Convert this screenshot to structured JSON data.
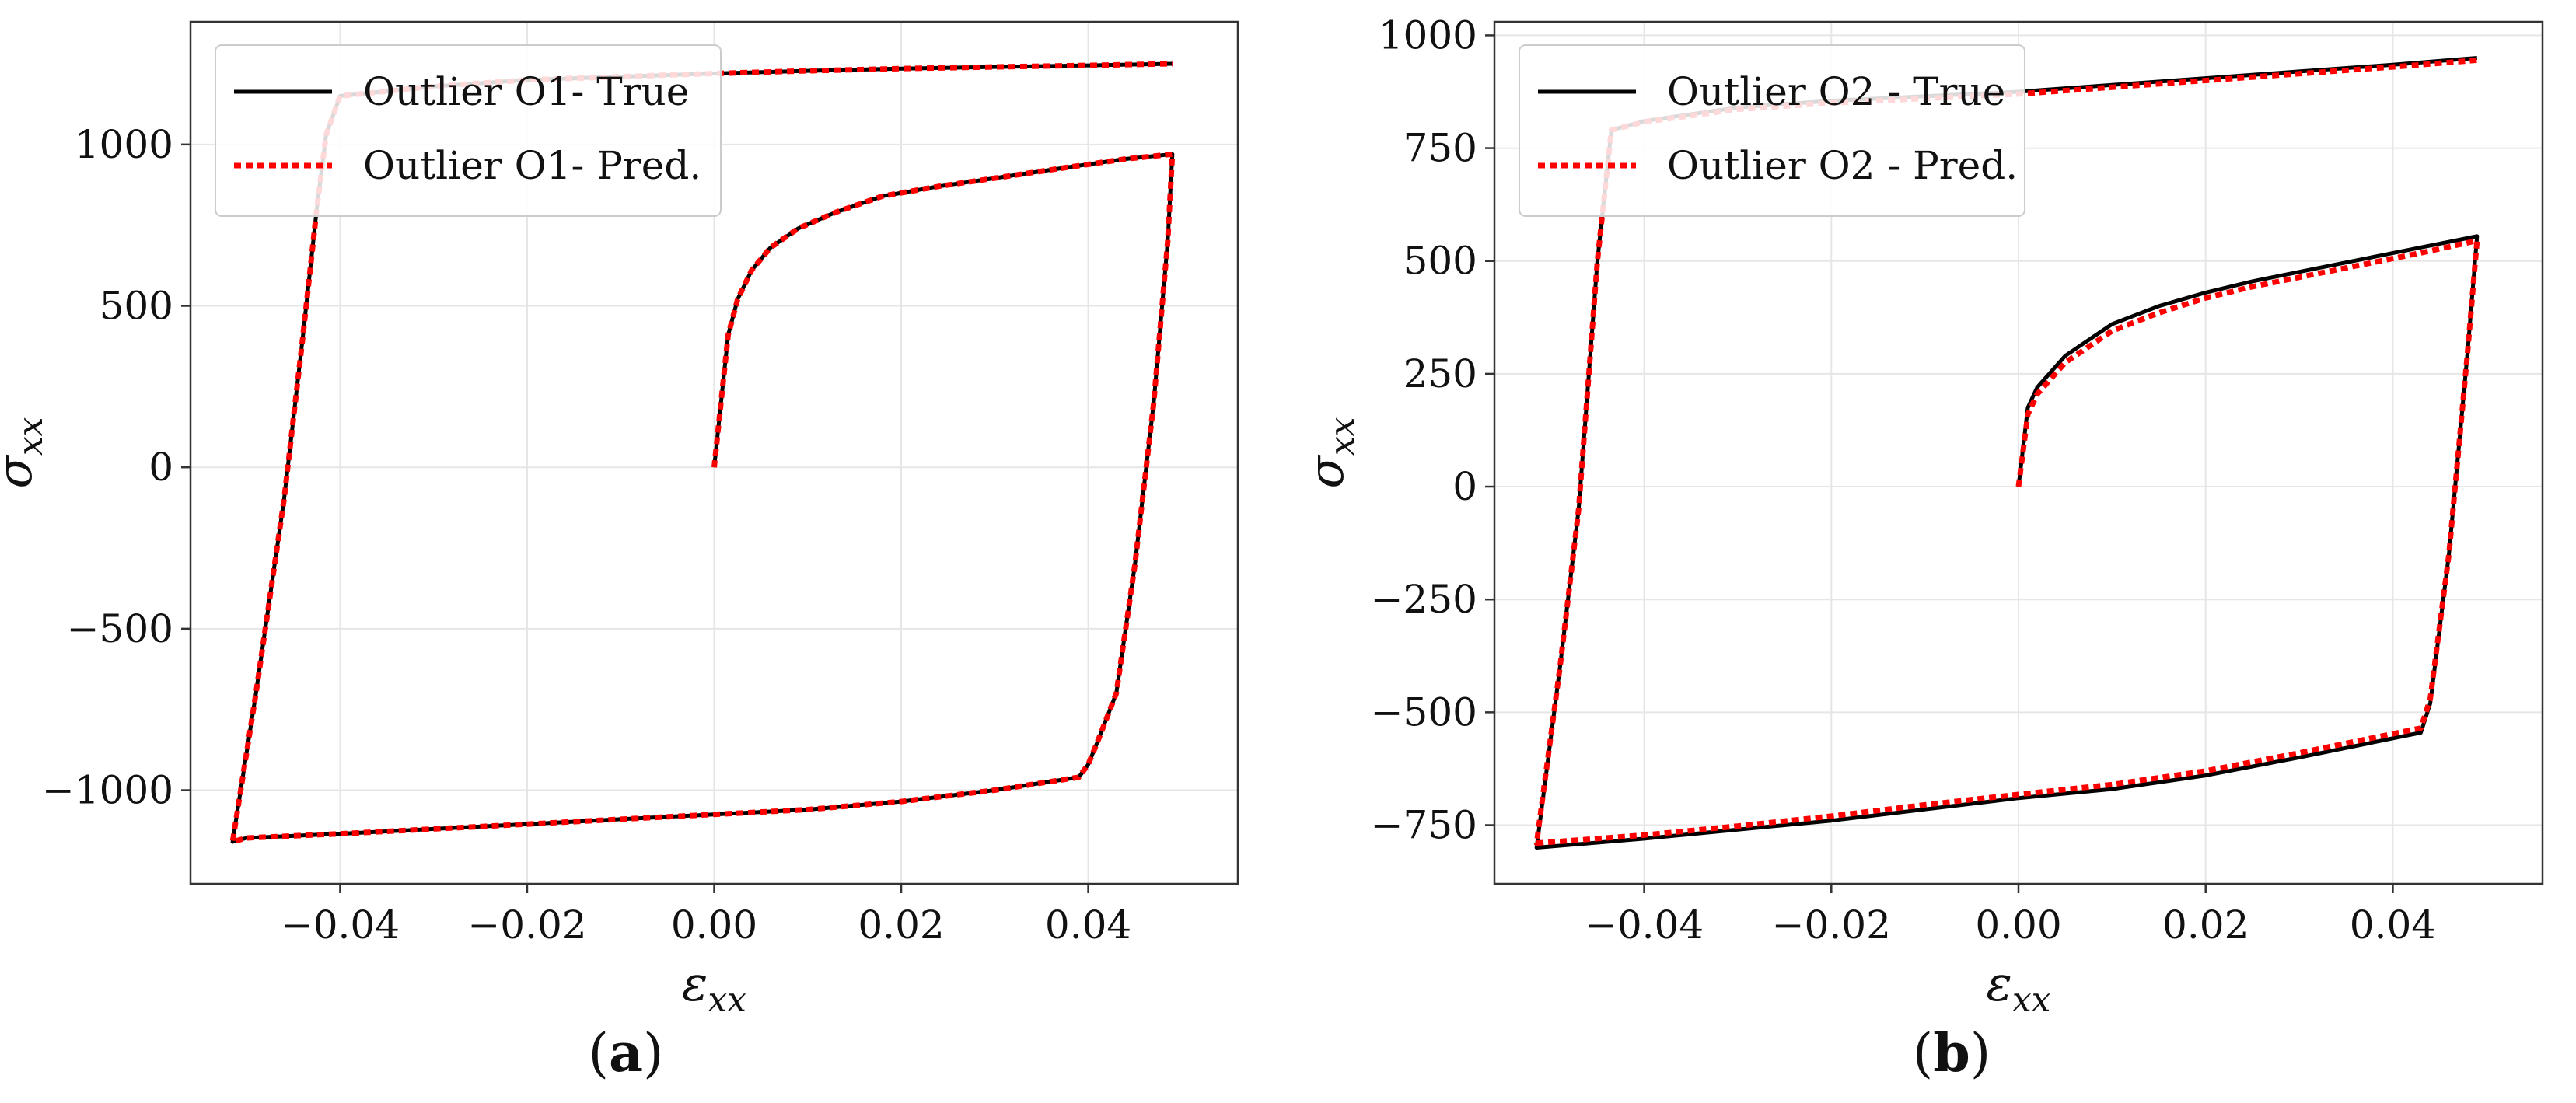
{
  "chart_data": [
    {
      "type": "line",
      "panel_label": "a",
      "xlabel": "ε",
      "xlabel_sub": "xx",
      "ylabel": "σ",
      "ylabel_sub": "xx",
      "xlim": [
        -0.056,
        0.056
      ],
      "ylim": [
        -1290,
        1380
      ],
      "xticks": [
        -0.04,
        -0.02,
        0.0,
        0.02,
        0.04
      ],
      "xtick_labels": [
        "−0.04",
        "−0.02",
        "0.00",
        "0.02",
        "0.04"
      ],
      "yticks": [
        -1000,
        -500,
        0,
        500,
        1000
      ],
      "ytick_labels": [
        "−1000",
        "−500",
        "0",
        "500",
        "1000"
      ],
      "grid": true,
      "legend_position": "upper-left",
      "series": [
        {
          "name": "Outlier O1- True",
          "color": "#000000",
          "style": "solid",
          "x": [
            0.0,
            0.0008,
            0.0015,
            0.0025,
            0.004,
            0.006,
            0.009,
            0.013,
            0.018,
            0.024,
            0.031,
            0.038,
            0.044,
            0.049,
            0.0485,
            0.047,
            0.045,
            0.043,
            0.041,
            0.04,
            0.039,
            0.03,
            0.02,
            0.01,
            0.0,
            -0.01,
            -0.02,
            -0.03,
            -0.04,
            -0.05,
            -0.0515,
            -0.049,
            -0.046,
            -0.044,
            -0.0425,
            -0.0415,
            -0.04,
            -0.03,
            -0.02,
            -0.01,
            0.0,
            0.01,
            0.02,
            0.03,
            0.04,
            0.049
          ],
          "y": [
            0,
            220,
            410,
            520,
            610,
            680,
            740,
            790,
            840,
            870,
            900,
            930,
            955,
            970,
            700,
            200,
            -300,
            -700,
            -850,
            -920,
            -960,
            -1000,
            -1035,
            -1060,
            -1075,
            -1090,
            -1105,
            -1120,
            -1135,
            -1148,
            -1160,
            -700,
            -100,
            400,
            800,
            1030,
            1150,
            1180,
            1200,
            1210,
            1220,
            1228,
            1235,
            1240,
            1245,
            1250
          ]
        },
        {
          "name": "Outlier O1- Pred.",
          "color": "#ff0000",
          "style": "dotted",
          "x": [
            0.0,
            0.0008,
            0.0015,
            0.0025,
            0.004,
            0.006,
            0.009,
            0.013,
            0.018,
            0.024,
            0.031,
            0.038,
            0.044,
            0.049,
            0.0485,
            0.047,
            0.045,
            0.043,
            0.041,
            0.04,
            0.039,
            0.03,
            0.02,
            0.01,
            0.0,
            -0.01,
            -0.02,
            -0.03,
            -0.04,
            -0.05,
            -0.0515,
            -0.049,
            -0.046,
            -0.044,
            -0.0425,
            -0.0415,
            -0.04,
            -0.03,
            -0.02,
            -0.01,
            0.0,
            0.01,
            0.02,
            0.03,
            0.04,
            0.049
          ],
          "y": [
            0,
            220,
            410,
            520,
            610,
            680,
            740,
            790,
            840,
            870,
            900,
            930,
            955,
            970,
            700,
            200,
            -300,
            -700,
            -850,
            -920,
            -960,
            -1000,
            -1035,
            -1060,
            -1075,
            -1090,
            -1105,
            -1120,
            -1135,
            -1148,
            -1160,
            -700,
            -100,
            400,
            800,
            1030,
            1150,
            1180,
            1200,
            1210,
            1220,
            1228,
            1235,
            1240,
            1245,
            1250
          ]
        }
      ]
    },
    {
      "type": "line",
      "panel_label": "b",
      "xlabel": "ε",
      "xlabel_sub": "xx",
      "ylabel": "σ",
      "ylabel_sub": "xx",
      "xlim": [
        -0.056,
        0.056
      ],
      "ylim": [
        -880,
        1030
      ],
      "xticks": [
        -0.04,
        -0.02,
        0.0,
        0.02,
        0.04
      ],
      "xtick_labels": [
        "−0.04",
        "−0.02",
        "0.00",
        "0.02",
        "0.04"
      ],
      "yticks": [
        -750,
        -500,
        -250,
        0,
        250,
        500,
        750,
        1000
      ],
      "ytick_labels": [
        "−750",
        "−500",
        "−250",
        "0",
        "250",
        "500",
        "750",
        "1000"
      ],
      "grid": true,
      "legend_position": "upper-left",
      "series": [
        {
          "name": "Outlier O2 - True",
          "color": "#000000",
          "style": "solid",
          "x": [
            0.0,
            0.001,
            0.002,
            0.005,
            0.01,
            0.015,
            0.02,
            0.025,
            0.031,
            0.037,
            0.043,
            0.049,
            0.048,
            0.046,
            0.044,
            0.043,
            0.03,
            0.02,
            0.01,
            0.0,
            -0.01,
            -0.02,
            -0.03,
            -0.04,
            -0.0515,
            -0.049,
            -0.047,
            -0.045,
            -0.0435,
            -0.04,
            -0.03,
            -0.02,
            -0.01,
            0.0,
            0.01,
            0.02,
            0.03,
            0.04,
            0.049
          ],
          "y": [
            0,
            175,
            220,
            290,
            360,
            400,
            430,
            455,
            480,
            505,
            530,
            555,
            300,
            -150,
            -480,
            -545,
            -600,
            -640,
            -670,
            -690,
            -715,
            -740,
            -760,
            -780,
            -800,
            -400,
            -50,
            500,
            790,
            810,
            840,
            855,
            865,
            875,
            890,
            905,
            920,
            935,
            950
          ]
        },
        {
          "name": "Outlier O2 - Pred.",
          "color": "#ff0000",
          "style": "dotted",
          "x": [
            0.0,
            0.001,
            0.002,
            0.005,
            0.01,
            0.015,
            0.02,
            0.025,
            0.031,
            0.037,
            0.043,
            0.049,
            0.048,
            0.046,
            0.044,
            0.043,
            0.03,
            0.02,
            0.01,
            0.0,
            -0.01,
            -0.02,
            -0.03,
            -0.04,
            -0.0515,
            -0.049,
            -0.047,
            -0.045,
            -0.0435,
            -0.04,
            -0.03,
            -0.02,
            -0.01,
            0.0,
            0.01,
            0.02,
            0.03,
            0.04,
            0.049
          ],
          "y": [
            0,
            160,
            205,
            275,
            345,
            385,
            418,
            443,
            468,
            493,
            518,
            545,
            300,
            -150,
            -470,
            -535,
            -590,
            -630,
            -660,
            -682,
            -705,
            -730,
            -752,
            -772,
            -790,
            -400,
            -50,
            500,
            790,
            808,
            836,
            850,
            860,
            870,
            885,
            900,
            915,
            930,
            945
          ]
        }
      ]
    }
  ]
}
